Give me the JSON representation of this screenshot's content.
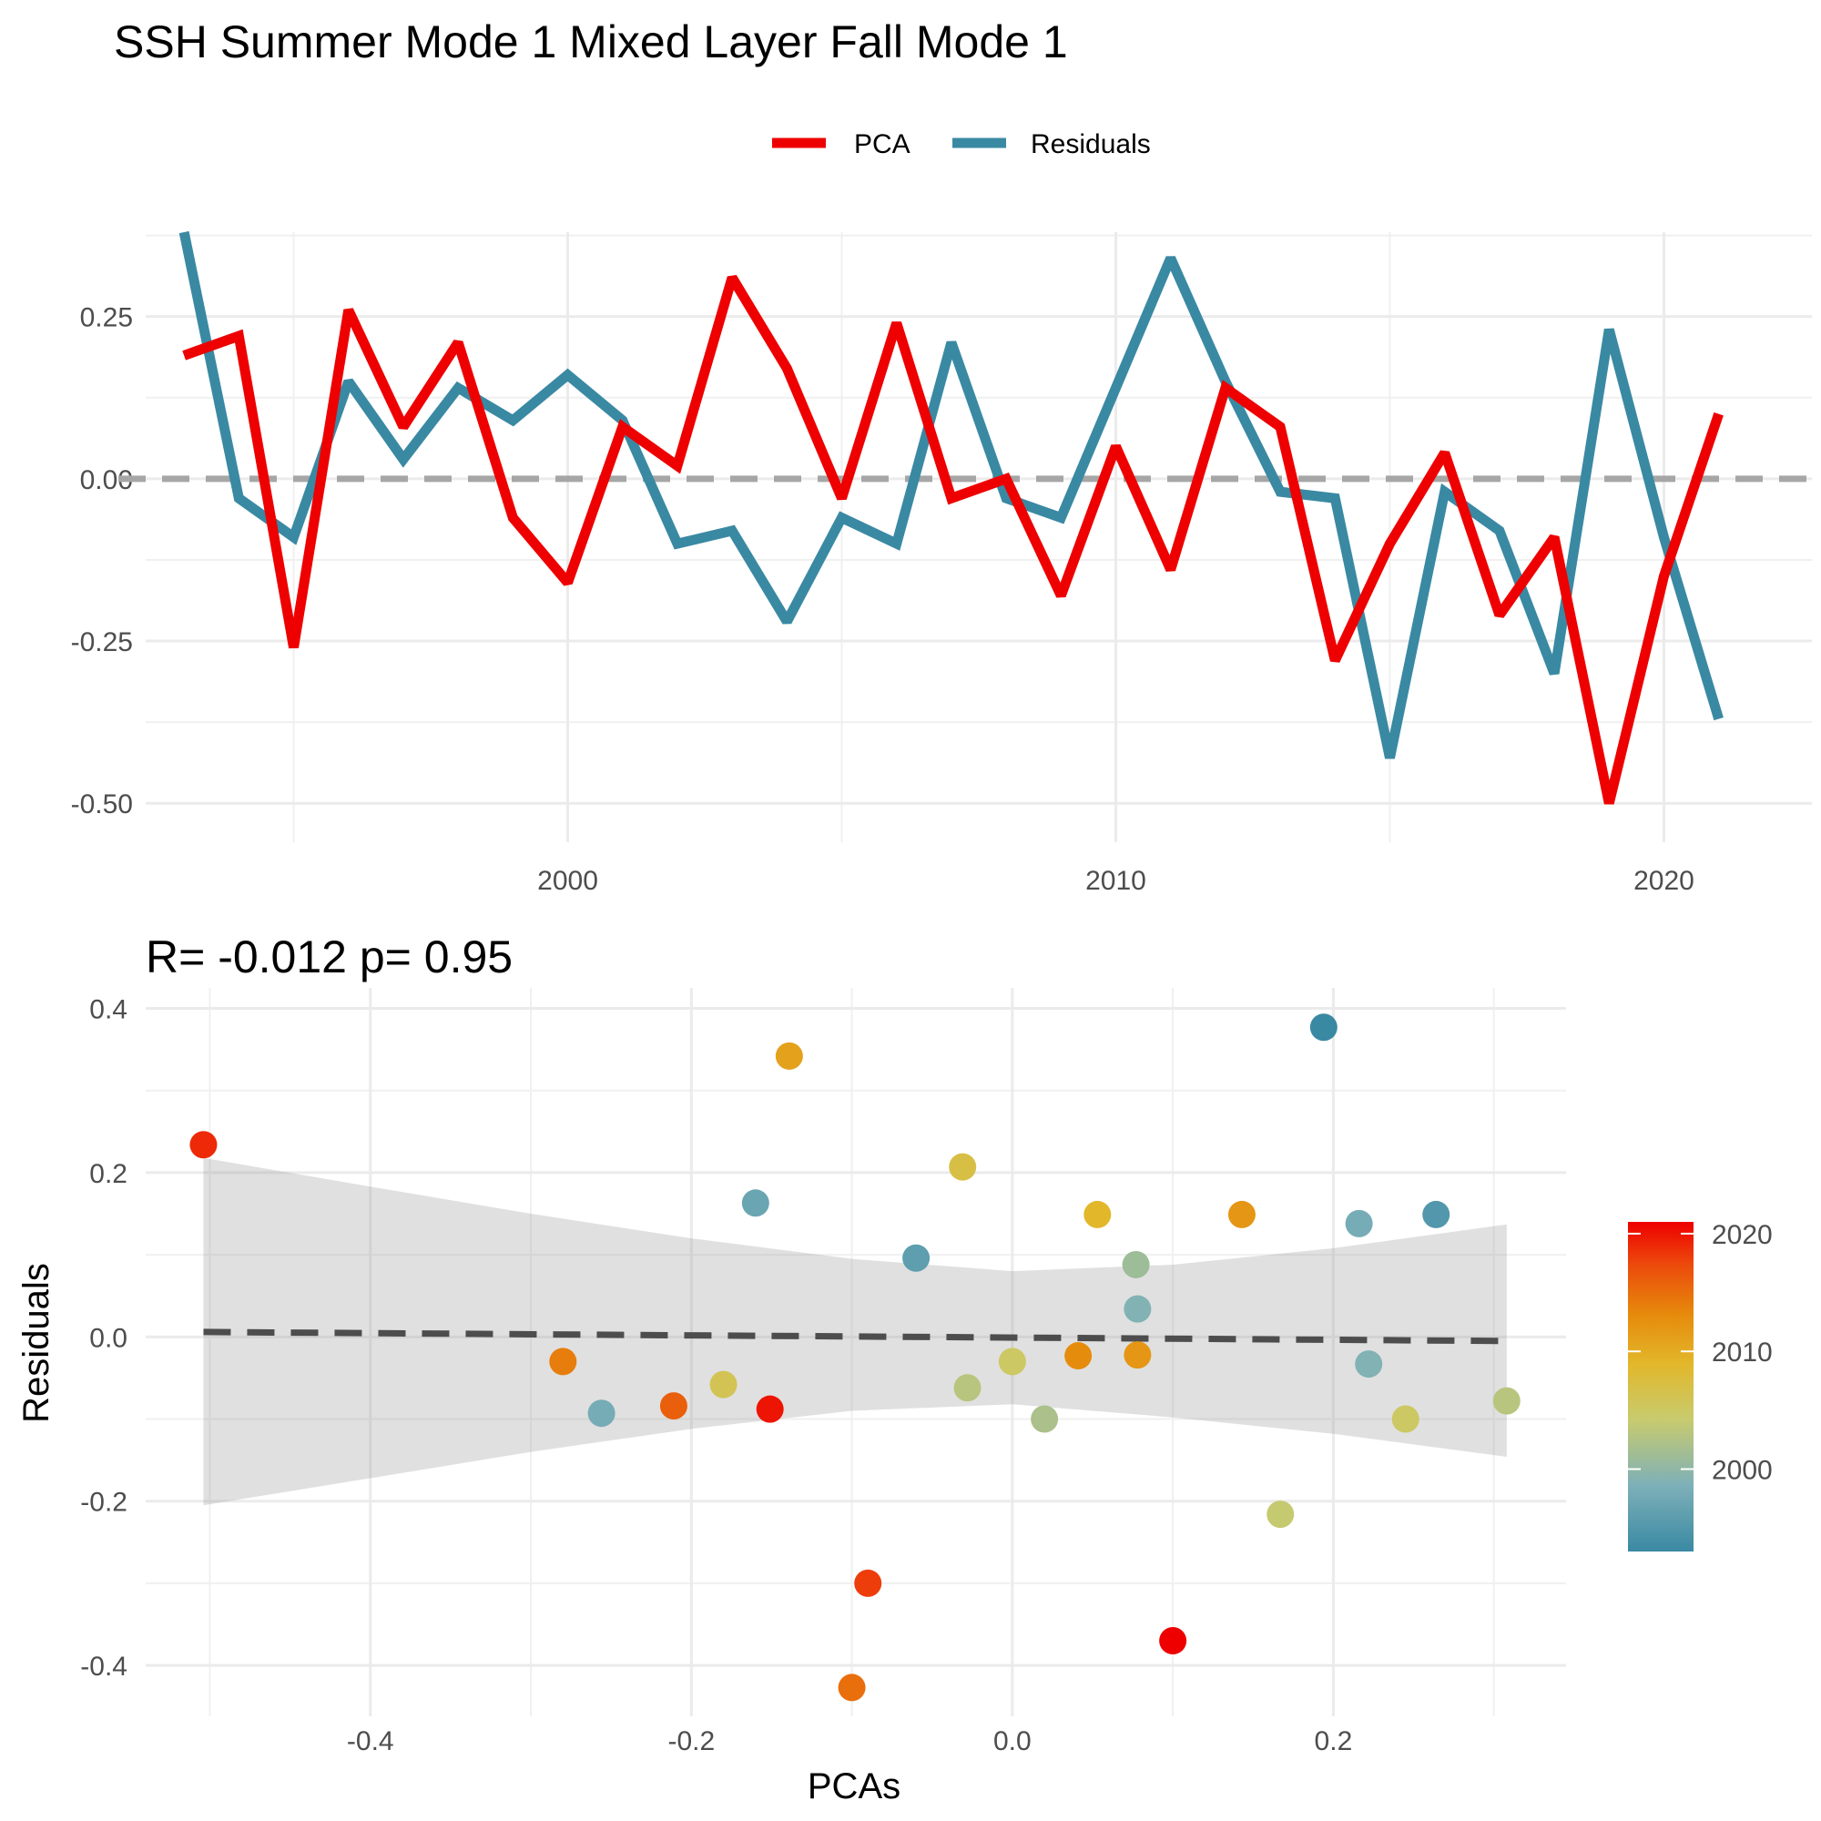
{
  "figure": {
    "title": "SSH Summer Mode 1 Mixed Layer Fall Mode 1"
  },
  "chart_data": [
    {
      "type": "line",
      "title": "SSH Summer Mode 1 Mixed Layer Fall Mode 1",
      "xlabel": "",
      "ylabel": "",
      "x": [
        1993,
        1994,
        1995,
        1996,
        1997,
        1998,
        1999,
        2000,
        2001,
        2002,
        2003,
        2004,
        2005,
        2006,
        2007,
        2008,
        2009,
        2010,
        2011,
        2012,
        2013,
        2014,
        2015,
        2016,
        2017,
        2018,
        2019,
        2020,
        2021
      ],
      "series": [
        {
          "name": "PCA",
          "color": "#EE0000",
          "values": [
            0.19,
            0.22,
            -0.26,
            0.26,
            0.08,
            0.21,
            -0.06,
            -0.16,
            0.08,
            0.02,
            0.31,
            0.17,
            -0.03,
            0.24,
            -0.03,
            0.0,
            -0.18,
            0.05,
            -0.14,
            0.14,
            0.08,
            -0.28,
            -0.1,
            0.04,
            -0.21,
            -0.09,
            -0.5,
            -0.15,
            0.1
          ]
        },
        {
          "name": "Residuals",
          "color": "#3A89A3",
          "values": [
            0.38,
            -0.03,
            -0.09,
            0.15,
            0.03,
            0.14,
            0.09,
            0.16,
            0.09,
            -0.1,
            -0.08,
            -0.22,
            -0.06,
            -0.1,
            0.21,
            -0.03,
            -0.06,
            0.14,
            0.34,
            0.15,
            -0.02,
            -0.03,
            -0.43,
            -0.02,
            -0.08,
            -0.3,
            0.23,
            -0.09,
            -0.37
          ]
        }
      ],
      "xlim": [
        1992.3,
        2022.7
      ],
      "ylim": [
        -0.56,
        0.38
      ],
      "x_ticks": [
        2000,
        2010,
        2020
      ],
      "x_tick_labels": [
        "2000",
        "2010",
        "2020"
      ],
      "y_ticks": [
        0.25,
        0.0,
        -0.25,
        -0.5
      ],
      "y_tick_labels": [
        "0.25",
        "0.00",
        "-0.25",
        "-0.50"
      ],
      "reference_line": {
        "y": 0,
        "style": "dashed",
        "color": "#A6A6A6"
      },
      "legend": {
        "position": "top",
        "entries": [
          "PCA",
          "Residuals"
        ]
      },
      "grid": true
    },
    {
      "type": "scatter",
      "title": "R= -0.012  p= 0.95",
      "xlabel": "PCAs",
      "ylabel": "Residuals",
      "points": [
        {
          "x": -0.504,
          "y": 0.234,
          "year": 2019
        },
        {
          "x": -0.28,
          "y": -0.03,
          "year": 2014
        },
        {
          "x": -0.256,
          "y": -0.093,
          "year": 1998
        },
        {
          "x": -0.211,
          "y": -0.084,
          "year": 2016
        },
        {
          "x": -0.18,
          "y": -0.058,
          "year": 2006
        },
        {
          "x": -0.16,
          "y": 0.163,
          "year": 1997
        },
        {
          "x": -0.151,
          "y": -0.088,
          "year": 2020
        },
        {
          "x": -0.139,
          "y": 0.342,
          "year": 2011
        },
        {
          "x": -0.1,
          "y": -0.427,
          "year": 2015
        },
        {
          "x": -0.09,
          "y": -0.3,
          "year": 2018
        },
        {
          "x": -0.06,
          "y": 0.096,
          "year": 1996
        },
        {
          "x": -0.031,
          "y": 0.207,
          "year": 2007
        },
        {
          "x": -0.028,
          "y": -0.062,
          "year": 2003
        },
        {
          "x": 0.0,
          "y": -0.03,
          "year": 2005
        },
        {
          "x": 0.02,
          "y": -0.1,
          "year": 2002
        },
        {
          "x": 0.041,
          "y": -0.023,
          "year": 2013
        },
        {
          "x": 0.053,
          "y": 0.149,
          "year": 2009
        },
        {
          "x": 0.077,
          "y": 0.088,
          "year": 2001
        },
        {
          "x": 0.078,
          "y": 0.034,
          "year": 1999
        },
        {
          "x": 0.078,
          "y": -0.022,
          "year": 2012
        },
        {
          "x": 0.1,
          "y": -0.37,
          "year": 2021
        },
        {
          "x": 0.143,
          "y": 0.149,
          "year": 2012
        },
        {
          "x": 0.167,
          "y": -0.216,
          "year": 2004
        },
        {
          "x": 0.194,
          "y": 0.377,
          "year": 1993
        },
        {
          "x": 0.216,
          "y": 0.138,
          "year": 1998
        },
        {
          "x": 0.222,
          "y": -0.033,
          "year": 1999
        },
        {
          "x": 0.245,
          "y": -0.1,
          "year": 2005
        },
        {
          "x": 0.264,
          "y": 0.149,
          "year": 1995
        },
        {
          "x": 0.308,
          "y": -0.078,
          "year": 2003
        }
      ],
      "trend_line": {
        "x": [
          -0.504,
          0.308
        ],
        "y": [
          0.006,
          -0.005
        ],
        "style": "dashed",
        "color": "#4D4D4D"
      },
      "confidence_band": {
        "x": [
          -0.504,
          -0.4,
          -0.3,
          -0.2,
          -0.1,
          0.0,
          0.1,
          0.2,
          0.308
        ],
        "upper": [
          0.218,
          0.183,
          0.15,
          0.12,
          0.095,
          0.08,
          0.088,
          0.108,
          0.137
        ],
        "lower": [
          -0.205,
          -0.172,
          -0.14,
          -0.112,
          -0.09,
          -0.082,
          -0.098,
          -0.118,
          -0.146
        ]
      },
      "xlim": [
        -0.54,
        0.345
      ],
      "ylim": [
        -0.462,
        0.425
      ],
      "x_ticks": [
        -0.4,
        -0.2,
        0.0,
        0.2
      ],
      "x_tick_labels": [
        "-0.4",
        "-0.2",
        "0.0",
        "0.2"
      ],
      "y_ticks": [
        0.4,
        0.2,
        0.0,
        -0.2,
        -0.4
      ],
      "y_tick_labels": [
        "0.4",
        "0.2",
        "0.0",
        "-0.2",
        "-0.4"
      ],
      "colorbar": {
        "min": 1993,
        "max": 2021,
        "ticks": [
          2000,
          2010,
          2020
        ],
        "tick_labels": [
          "2000",
          "2010",
          "2020"
        ],
        "colors": [
          "#3A89A3",
          "#7DB0B8",
          "#C8CB6E",
          "#E2B72A",
          "#E68A0C",
          "#EC4A0C",
          "#EE0000"
        ]
      },
      "grid": true
    }
  ]
}
